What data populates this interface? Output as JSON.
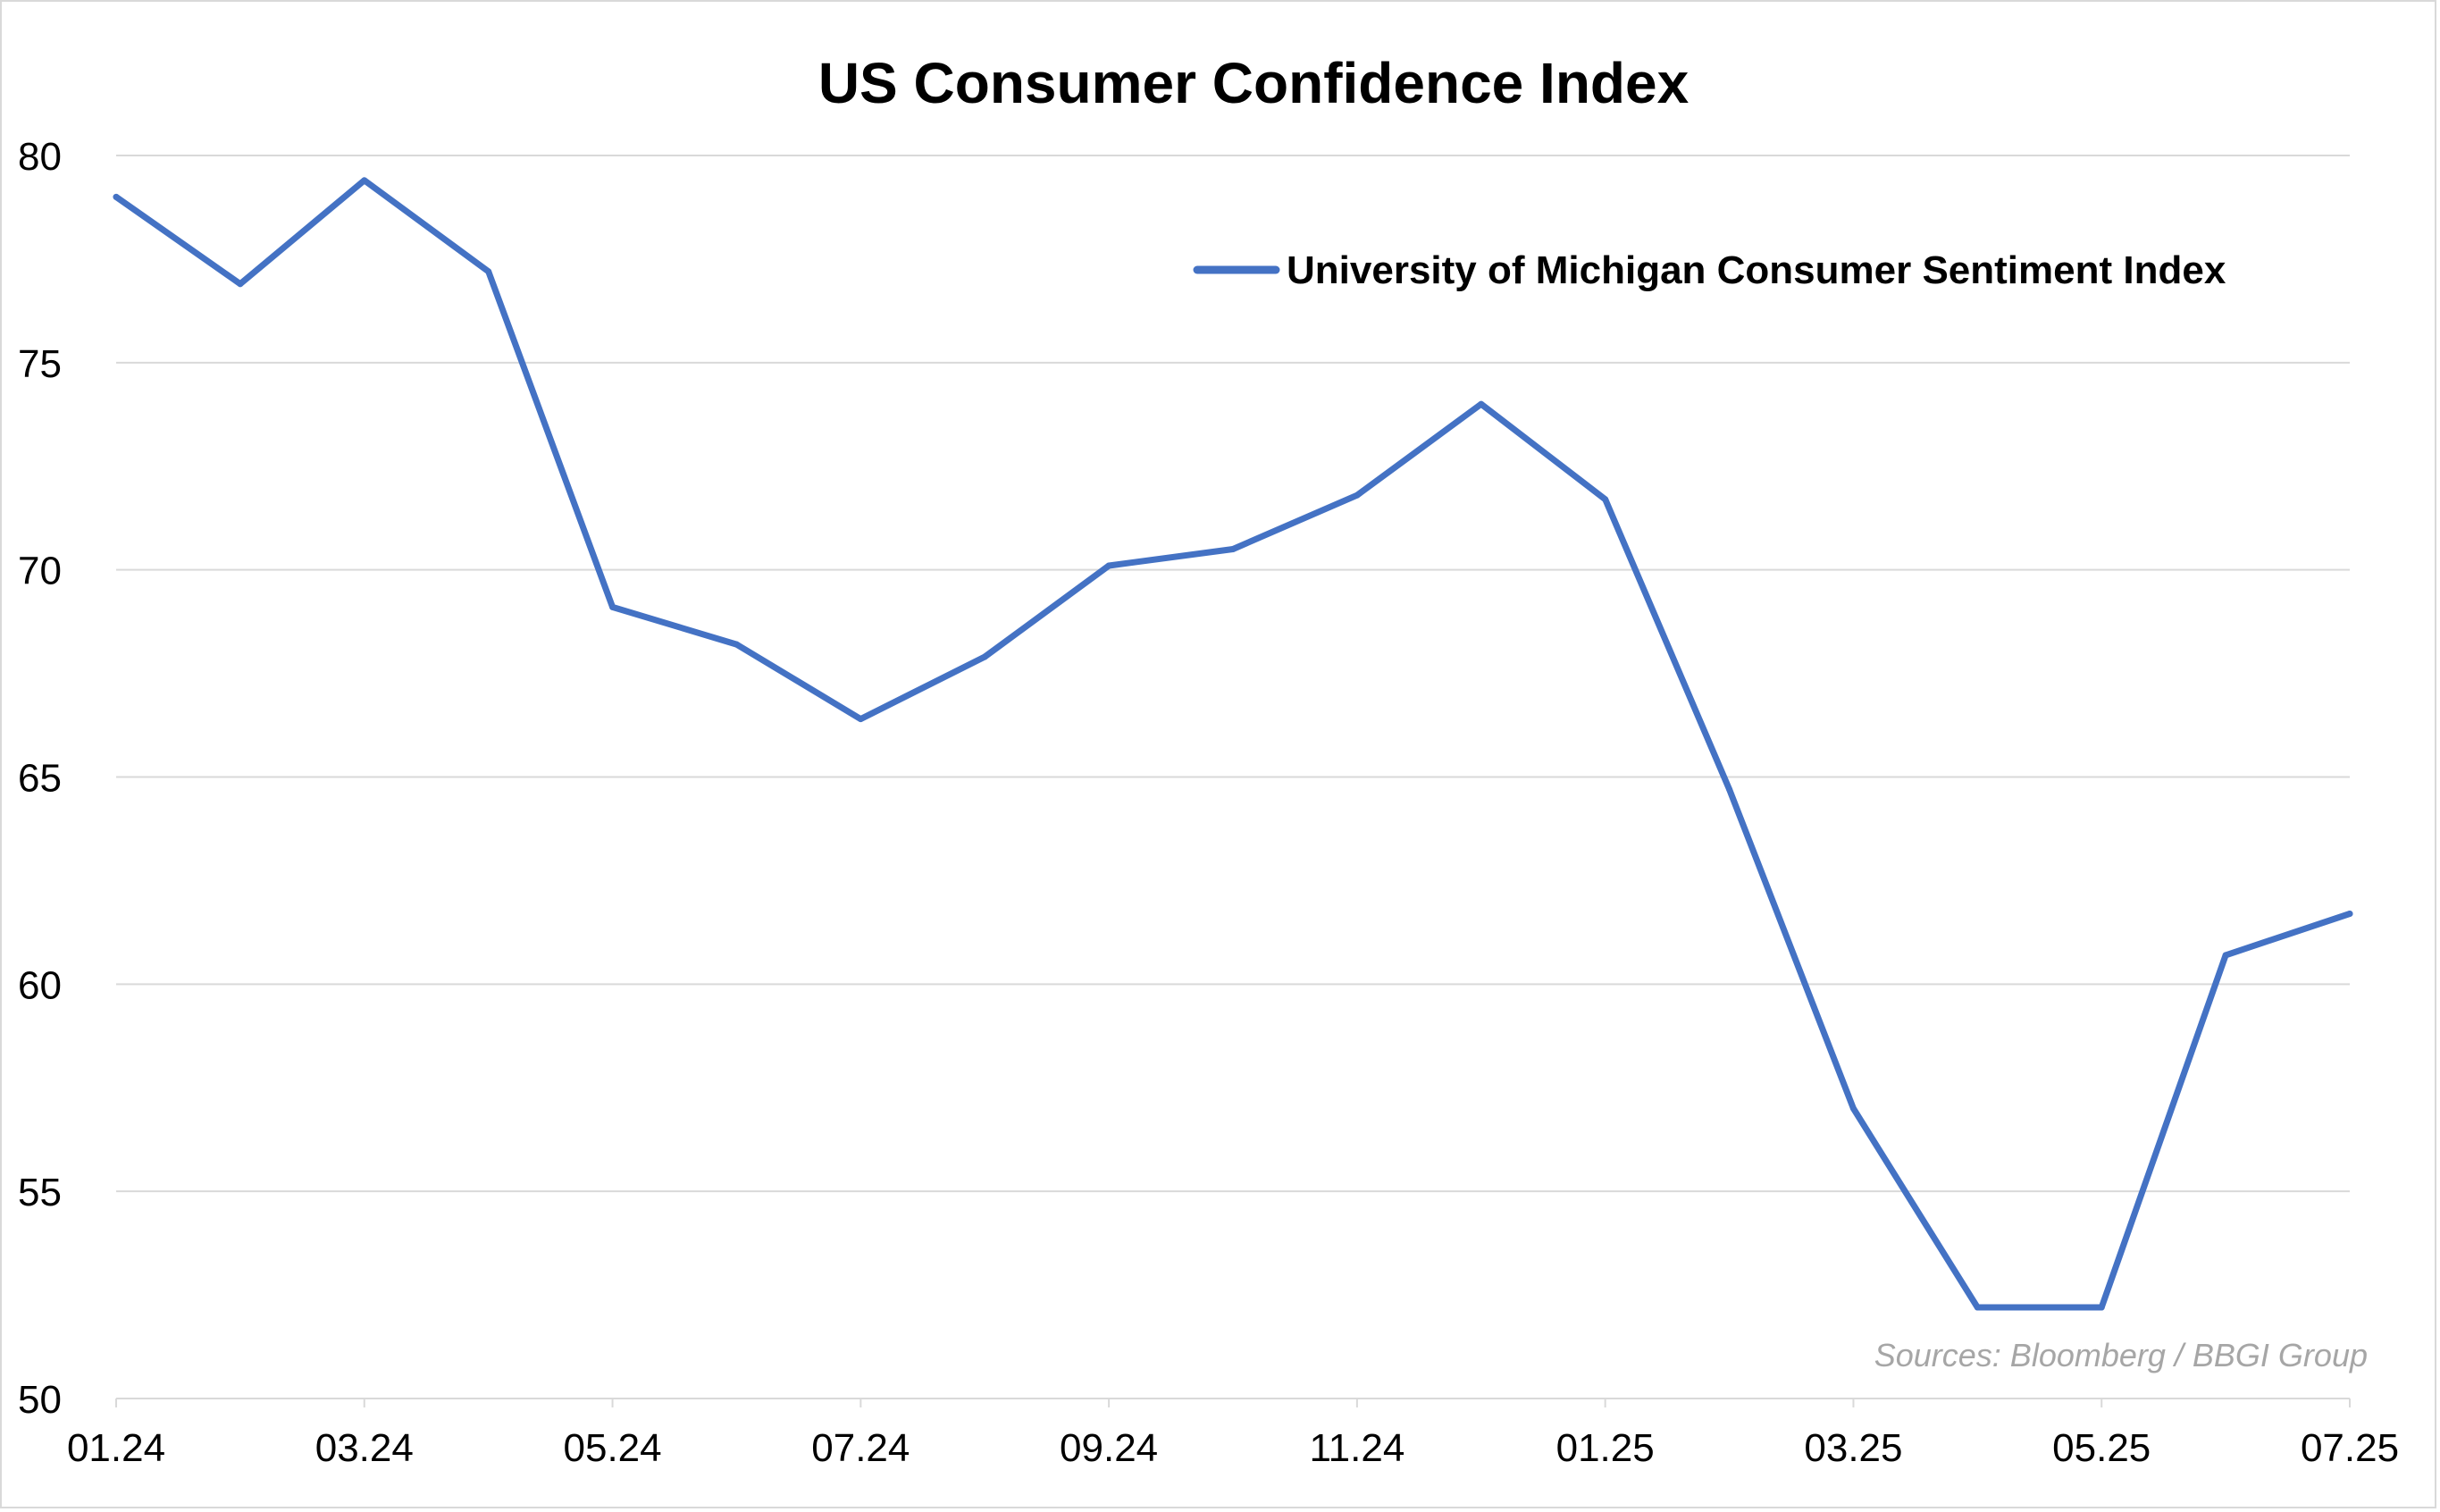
{
  "chart_data": {
    "type": "line",
    "title": "US Consumer Confidence Index",
    "xlabel": "",
    "ylabel": "",
    "ylim": [
      50,
      80
    ],
    "yticks": [
      "50",
      "55",
      "60",
      "65",
      "70",
      "75",
      "80"
    ],
    "xticks": [
      "01.24",
      "03.24",
      "05.24",
      "07.24",
      "09.24",
      "11.24",
      "01.25",
      "03.25",
      "05.25",
      "07.25"
    ],
    "x": [
      "01.24",
      "02.24",
      "03.24",
      "04.24",
      "05.24",
      "06.24",
      "07.24",
      "08.24",
      "09.24",
      "10.24",
      "11.24",
      "12.24",
      "01.25",
      "02.25",
      "03.25",
      "04.25",
      "05.25",
      "06.25",
      "07.25"
    ],
    "series": [
      {
        "name": "University of Michigan Consumer Sentiment Index",
        "color": "#4472c4",
        "values": [
          79.0,
          76.9,
          79.4,
          77.2,
          69.1,
          68.2,
          66.4,
          67.9,
          70.1,
          70.5,
          71.8,
          74.0,
          71.7,
          64.7,
          57.0,
          52.2,
          52.2,
          60.7,
          61.7
        ]
      }
    ],
    "grid": true,
    "legend_position": "top-right",
    "source_note": "Sources: Bloomberg / BBGI Group"
  }
}
